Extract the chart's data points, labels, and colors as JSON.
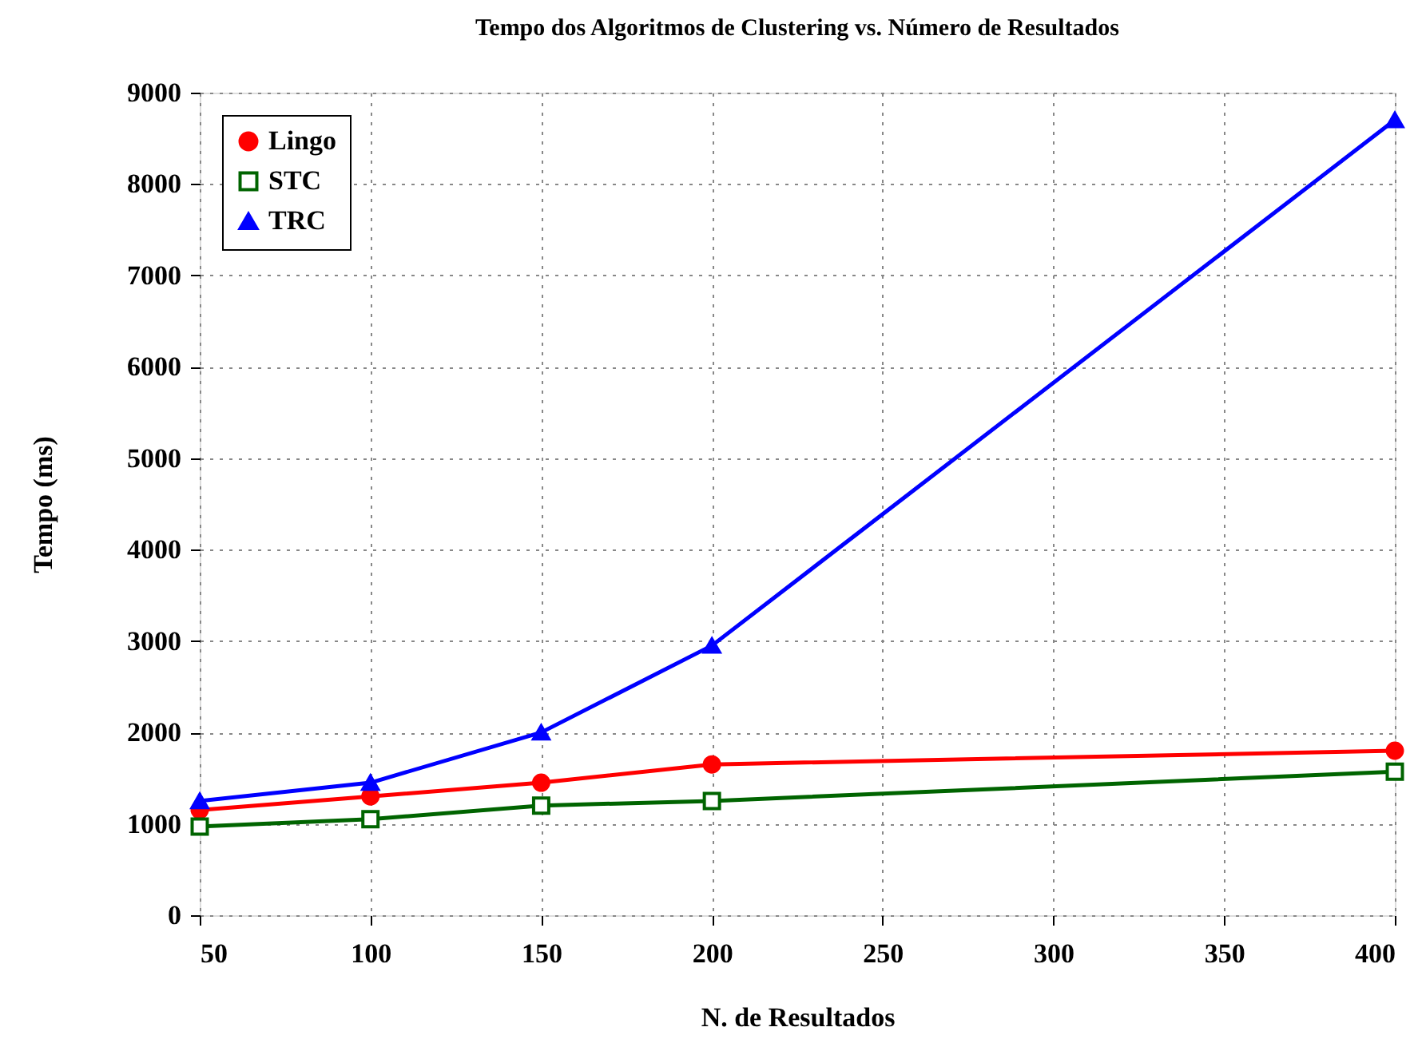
{
  "chart_data": {
    "type": "line",
    "title": "Tempo dos Algoritmos de Clustering vs. Número de Resultados",
    "xlabel": "N. de Resultados",
    "ylabel": "Tempo (ms)",
    "x": [
      50,
      100,
      150,
      200,
      400
    ],
    "series": [
      {
        "name": "Lingo",
        "color": "#ff0000",
        "marker": "circle",
        "values": [
          1150,
          1300,
          1450,
          1650,
          1800
        ]
      },
      {
        "name": "STC",
        "color": "#006400",
        "marker": "square",
        "values": [
          970,
          1050,
          1200,
          1250,
          1570
        ]
      },
      {
        "name": "TRC",
        "color": "#0000ff",
        "marker": "triangle",
        "values": [
          1250,
          1450,
          2000,
          2950,
          8700
        ]
      }
    ],
    "xlim": [
      50,
      400
    ],
    "xticks": [
      50,
      100,
      150,
      200,
      250,
      300,
      350,
      400
    ],
    "ylim": [
      0,
      9000
    ],
    "yticks": [
      0,
      1000,
      2000,
      3000,
      4000,
      5000,
      6000,
      7000,
      8000,
      9000
    ],
    "grid": true,
    "legend": "top left",
    "line_style": "solid"
  }
}
